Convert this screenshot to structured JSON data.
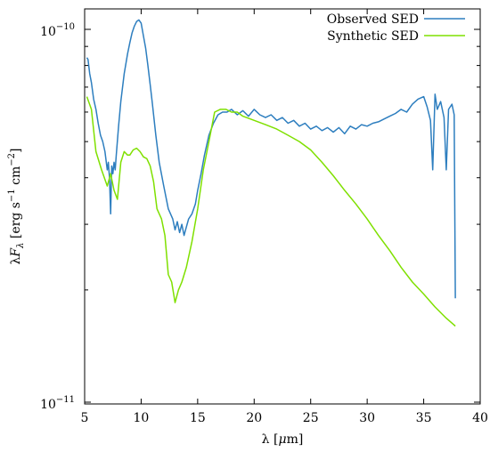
{
  "chart_data": {
    "type": "line",
    "xlabel": "λ [μm]",
    "ylabel": "λF_λ [erg s^-1 cm^-2]",
    "xlim": [
      5,
      40
    ],
    "ylim": [
      1e-11,
      1.1e-10
    ],
    "yscale": "log",
    "x_ticks": [
      5,
      10,
      15,
      20,
      25,
      30,
      35,
      40
    ],
    "y_ticks": [
      {
        "value": 1e-10,
        "label": "10^-10"
      },
      {
        "value": 1e-11,
        "label": "10^-11"
      }
    ],
    "legend_position": "top-right",
    "grid": false,
    "series": [
      {
        "name": "Observed SED",
        "color": "#2d7ebf",
        "x": [
          5.2,
          5.3,
          5.45,
          5.6,
          5.8,
          6.0,
          6.2,
          6.4,
          6.6,
          6.8,
          7.0,
          7.1,
          7.2,
          7.3,
          7.4,
          7.5,
          7.6,
          7.7,
          7.8,
          8.0,
          8.2,
          8.5,
          8.8,
          9.0,
          9.2,
          9.4,
          9.6,
          9.8,
          10.0,
          10.2,
          10.4,
          10.6,
          10.8,
          11.0,
          11.3,
          11.6,
          12.0,
          12.4,
          12.8,
          13.0,
          13.2,
          13.4,
          13.6,
          13.8,
          14.0,
          14.2,
          14.5,
          14.8,
          15.0,
          15.3,
          15.6,
          16.0,
          16.4,
          16.8,
          17.2,
          17.6,
          18.0,
          18.5,
          19.0,
          19.5,
          20.0,
          20.5,
          21.0,
          21.5,
          22.0,
          22.5,
          23.0,
          23.5,
          24.0,
          24.5,
          25.0,
          25.5,
          26.0,
          26.5,
          27.0,
          27.5,
          28.0,
          28.5,
          29.0,
          29.5,
          30.0,
          30.5,
          31.0,
          31.5,
          32.0,
          32.5,
          33.0,
          33.5,
          34.0,
          34.5,
          35.0,
          35.3,
          35.6,
          35.8,
          36.0,
          36.2,
          36.5,
          36.8,
          37.0,
          37.2,
          37.5,
          37.7,
          37.8
        ],
        "y": [
          8.4e-11,
          8.3e-11,
          7.6e-11,
          7.2e-11,
          6.5e-11,
          6.1e-11,
          5.6e-11,
          5.2e-11,
          5e-11,
          4.7e-11,
          4.2e-11,
          4.4e-11,
          4e-11,
          3.2e-11,
          4.3e-11,
          4.1e-11,
          4.4e-11,
          4.2e-11,
          4.6e-11,
          5.5e-11,
          6.4e-11,
          7.6e-11,
          8.6e-11,
          9.2e-11,
          9.8e-11,
          1.02e-10,
          1.05e-10,
          1.06e-10,
          1.04e-10,
          9.6e-11,
          8.9e-11,
          8e-11,
          7.1e-11,
          6.3e-11,
          5.2e-11,
          4.4e-11,
          3.8e-11,
          3.3e-11,
          3.1e-11,
          2.9e-11,
          3.05e-11,
          2.85e-11,
          3e-11,
          2.8e-11,
          2.95e-11,
          3.1e-11,
          3.2e-11,
          3.4e-11,
          3.7e-11,
          4.1e-11,
          4.6e-11,
          5.2e-11,
          5.6e-11,
          5.9e-11,
          6e-11,
          6e-11,
          6.1e-11,
          5.9e-11,
          6.05e-11,
          5.85e-11,
          6.1e-11,
          5.9e-11,
          5.8e-11,
          5.9e-11,
          5.7e-11,
          5.8e-11,
          5.6e-11,
          5.7e-11,
          5.5e-11,
          5.6e-11,
          5.4e-11,
          5.5e-11,
          5.35e-11,
          5.45e-11,
          5.3e-11,
          5.45e-11,
          5.25e-11,
          5.5e-11,
          5.4e-11,
          5.55e-11,
          5.5e-11,
          5.6e-11,
          5.65e-11,
          5.75e-11,
          5.85e-11,
          5.95e-11,
          6.1e-11,
          6e-11,
          6.3e-11,
          6.5e-11,
          6.6e-11,
          6.2e-11,
          5.7e-11,
          4.2e-11,
          6.7e-11,
          6.1e-11,
          6.4e-11,
          5.8e-11,
          4.2e-11,
          6.1e-11,
          6.3e-11,
          5.9e-11,
          1.9e-11
        ]
      },
      {
        "name": "Synthetic SED",
        "color": "#7fe000",
        "x": [
          5.2,
          5.6,
          6.0,
          6.5,
          7.0,
          7.3,
          7.6,
          7.9,
          8.2,
          8.5,
          8.8,
          9.0,
          9.3,
          9.6,
          9.9,
          10.2,
          10.5,
          10.8,
          11.1,
          11.4,
          11.8,
          12.1,
          12.4,
          12.7,
          13.0,
          13.3,
          13.6,
          14.0,
          14.5,
          15.0,
          15.5,
          16.0,
          16.5,
          17.0,
          17.5,
          18.0,
          18.5,
          19.0,
          20.0,
          21.0,
          22.0,
          23.0,
          24.0,
          25.0,
          26.0,
          27.0,
          28.0,
          29.0,
          30.0,
          31.0,
          32.0,
          33.0,
          34.0,
          35.0,
          36.0,
          37.0,
          37.8
        ],
        "y": [
          6.6e-11,
          6.1e-11,
          4.7e-11,
          4.2e-11,
          3.8e-11,
          4.1e-11,
          3.7e-11,
          3.5e-11,
          4.4e-11,
          4.7e-11,
          4.6e-11,
          4.6e-11,
          4.75e-11,
          4.8e-11,
          4.7e-11,
          4.55e-11,
          4.5e-11,
          4.3e-11,
          3.9e-11,
          3.3e-11,
          3.1e-11,
          2.8e-11,
          2.2e-11,
          2.1e-11,
          1.85e-11,
          2e-11,
          2.1e-11,
          2.3e-11,
          2.7e-11,
          3.3e-11,
          4.2e-11,
          5e-11,
          6e-11,
          6.1e-11,
          6.1e-11,
          6e-11,
          6e-11,
          5.85e-11,
          5.7e-11,
          5.55e-11,
          5.4e-11,
          5.2e-11,
          5e-11,
          4.75e-11,
          4.4e-11,
          4.05e-11,
          3.7e-11,
          3.4e-11,
          3.1e-11,
          2.8e-11,
          2.55e-11,
          2.3e-11,
          2.1e-11,
          1.95e-11,
          1.8e-11,
          1.68e-11,
          1.6e-11
        ]
      }
    ]
  }
}
